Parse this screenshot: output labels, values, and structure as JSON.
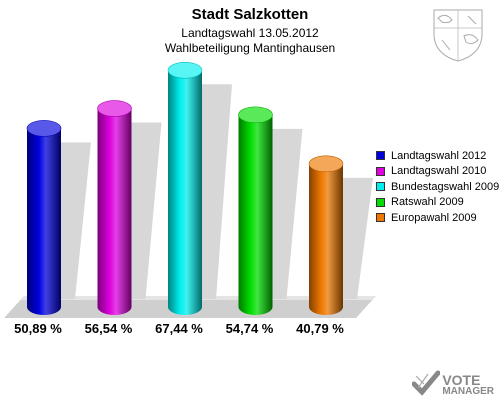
{
  "header": {
    "title": "Stadt Salzkotten",
    "subtitle1": "Landtagswahl 13.05.2012",
    "subtitle2": "Wahlbeteiligung Mantinghausen"
  },
  "logo": {
    "line1": "VOTE",
    "line2": "MANAGER"
  },
  "chart_data": {
    "type": "bar",
    "title": "Stadt Salzkotten",
    "subtitle": "Landtagswahl 13.05.2012 / Wahlbeteiligung Mantinghausen",
    "categories": [
      "Landtagswahl 2012",
      "Landtagswahl 2010",
      "Bundestagswahl 2009",
      "Ratswahl 2009",
      "Europawahl 2009"
    ],
    "values": [
      50.89,
      56.54,
      67.44,
      54.74,
      40.79
    ],
    "value_labels": [
      "50,89 %",
      "56,54 %",
      "67,44 %",
      "54,74 %",
      "40,79 %"
    ],
    "colors": [
      "#0000dd",
      "#dd00dd",
      "#00eeee",
      "#00dd00",
      "#ee7700"
    ],
    "ylim": [
      0,
      70
    ],
    "legend": "right",
    "grid": false,
    "style": "3d-cylinder"
  }
}
